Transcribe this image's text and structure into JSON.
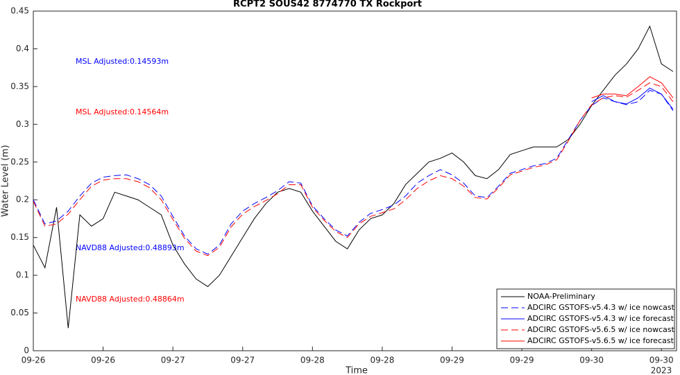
{
  "chart_data": {
    "type": "line",
    "title": "RCPT2 SOUS42 8774770 TX Rockport",
    "x_label": "Time",
    "y_label": "Water Level (m)",
    "x_year_label": "2023",
    "x": [
      0,
      2,
      4,
      6,
      8,
      10,
      12,
      14,
      16,
      18,
      20,
      22,
      24,
      26,
      28,
      30,
      32,
      34,
      36,
      38,
      40,
      42,
      44,
      46,
      48,
      50,
      52,
      54,
      56,
      58,
      60,
      62,
      64,
      66,
      68,
      70,
      72,
      74,
      76,
      78,
      80,
      82,
      84,
      86,
      88,
      90,
      92,
      94,
      96,
      98,
      100,
      102,
      104,
      106,
      108,
      110
    ],
    "xlim": [
      0,
      110.6
    ],
    "xticks": [
      {
        "value": 0,
        "label": "09-26"
      },
      {
        "value": 12,
        "label": "09-26"
      },
      {
        "value": 24,
        "label": "09-27"
      },
      {
        "value": 36,
        "label": "09-27"
      },
      {
        "value": 48,
        "label": "09-28"
      },
      {
        "value": 60,
        "label": "09-28"
      },
      {
        "value": 72,
        "label": "09-29"
      },
      {
        "value": 84,
        "label": "09-29"
      },
      {
        "value": 96,
        "label": "09-30"
      },
      {
        "value": 108,
        "label": "09-30"
      }
    ],
    "ylim": [
      0,
      0.45
    ],
    "yticks": [
      0,
      0.05,
      0.1,
      0.15,
      0.2,
      0.25,
      0.3,
      0.35,
      0.4,
      0.45
    ],
    "legend_position": "lower right",
    "series": [
      {
        "name": "NOAA-Preliminary",
        "color": "#000000",
        "dash": "solid",
        "values": [
          0.14,
          0.11,
          0.19,
          0.03,
          0.18,
          0.165,
          0.175,
          0.21,
          0.205,
          0.2,
          0.19,
          0.18,
          0.14,
          0.115,
          0.095,
          0.085,
          0.1,
          0.125,
          0.15,
          0.175,
          0.195,
          0.21,
          0.215,
          0.21,
          0.185,
          0.165,
          0.145,
          0.135,
          0.16,
          0.175,
          0.18,
          0.195,
          0.22,
          0.235,
          0.25,
          0.255,
          0.262,
          0.25,
          0.232,
          0.228,
          0.24,
          0.26,
          0.265,
          0.27,
          0.27,
          0.27,
          0.28,
          0.3,
          0.325,
          0.345,
          0.365,
          0.38,
          0.4,
          0.43,
          0.38,
          0.37
        ]
      },
      {
        "name": "ADCIRC GSTOFS-v5.4.3  w/ ice nowcast",
        "color": "#0000ff",
        "dash": "dashed",
        "values": [
          0.2,
          0.168,
          0.172,
          0.185,
          0.205,
          0.222,
          0.23,
          0.232,
          0.233,
          0.228,
          0.22,
          0.205,
          0.178,
          0.152,
          0.135,
          0.128,
          0.14,
          0.168,
          0.185,
          0.195,
          0.203,
          0.212,
          0.224,
          0.222,
          0.192,
          0.175,
          0.16,
          0.152,
          0.17,
          0.182,
          0.187,
          0.193,
          0.205,
          0.222,
          0.232,
          0.24,
          0.233,
          0.222,
          0.205,
          0.203,
          0.218,
          0.235,
          0.24,
          0.245,
          0.248,
          0.255,
          0.28,
          0.305,
          0.325,
          0.335,
          0.33,
          0.326,
          0.33,
          0.345,
          0.34,
          0.318
        ]
      },
      {
        "name": "ADCIRC GSTOFS-v5.4.3  w/ ice forecast",
        "color": "#0000ff",
        "dash": "solid",
        "values": [
          null,
          null,
          null,
          null,
          null,
          null,
          null,
          null,
          null,
          null,
          null,
          null,
          null,
          null,
          null,
          null,
          null,
          null,
          null,
          null,
          null,
          null,
          null,
          null,
          null,
          null,
          null,
          null,
          null,
          null,
          null,
          null,
          null,
          null,
          null,
          null,
          null,
          null,
          null,
          null,
          null,
          null,
          null,
          null,
          null,
          null,
          null,
          null,
          0.33,
          0.338,
          0.33,
          0.327,
          0.335,
          0.348,
          0.34,
          0.32
        ]
      },
      {
        "name": "ADCIRC GSTOFS-v5.6.5  w/ ice nowcast",
        "color": "#ff0000",
        "dash": "dashed",
        "values": [
          0.198,
          0.165,
          0.168,
          0.181,
          0.2,
          0.218,
          0.226,
          0.228,
          0.228,
          0.224,
          0.216,
          0.2,
          0.174,
          0.149,
          0.132,
          0.126,
          0.137,
          0.164,
          0.181,
          0.191,
          0.199,
          0.208,
          0.22,
          0.22,
          0.19,
          0.173,
          0.158,
          0.15,
          0.168,
          0.178,
          0.183,
          0.188,
          0.2,
          0.215,
          0.225,
          0.232,
          0.228,
          0.218,
          0.203,
          0.201,
          0.216,
          0.233,
          0.238,
          0.243,
          0.246,
          0.253,
          0.278,
          0.305,
          0.326,
          0.335,
          0.338,
          0.336,
          0.345,
          0.355,
          0.35,
          0.33
        ]
      },
      {
        "name": "ADCIRC GSTOFS-v5.6.5  w/ ice forecast",
        "color": "#ff0000",
        "dash": "solid",
        "values": [
          null,
          null,
          null,
          null,
          null,
          null,
          null,
          null,
          null,
          null,
          null,
          null,
          null,
          null,
          null,
          null,
          null,
          null,
          null,
          null,
          null,
          null,
          null,
          null,
          null,
          null,
          null,
          null,
          null,
          null,
          null,
          null,
          null,
          null,
          null,
          null,
          null,
          null,
          null,
          null,
          null,
          null,
          null,
          null,
          null,
          null,
          null,
          null,
          0.335,
          0.34,
          0.34,
          0.338,
          0.35,
          0.363,
          0.355,
          0.335
        ]
      }
    ],
    "annotations": [
      {
        "text": "MSL Adjusted:0.14593m",
        "color": "#0000ff"
      },
      {
        "text": "MSL Adjusted:0.14564m",
        "color": "#ff0000"
      },
      {
        "text": "NAVD88 Adjusted:0.48893m",
        "color": "#0000ff"
      },
      {
        "text": "NAVD88 Adjusted:0.48864m",
        "color": "#ff0000"
      }
    ]
  }
}
